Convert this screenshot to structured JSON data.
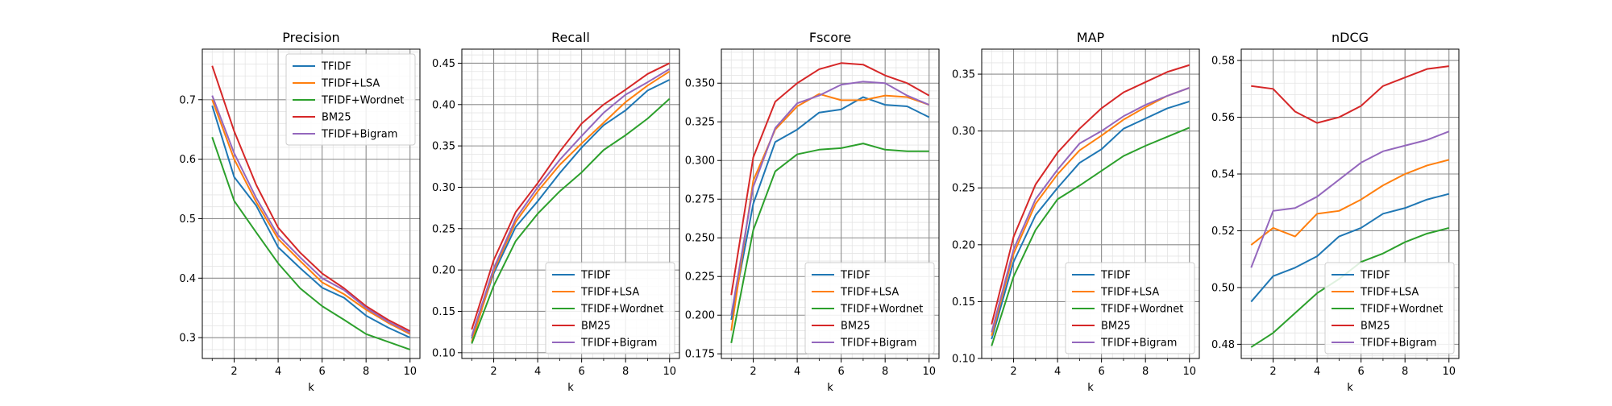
{
  "figure": {
    "colors": {
      "TFIDF": "#1f77b4",
      "TFIDF+LSA": "#ff7f0e",
      "TFIDF+Wordnet": "#2ca02c",
      "BM25": "#d62728",
      "TFIDF+Bigram": "#9467bd"
    },
    "grid": true,
    "minor_grid": true
  },
  "chart_data": [
    {
      "type": "line",
      "title": "Precision",
      "xlabel": "k",
      "ylabel": "",
      "xlim": [
        0.55,
        10.45
      ],
      "ylim": [
        0.265,
        0.785
      ],
      "xticks": [
        2,
        4,
        6,
        8,
        10
      ],
      "xtick_labels": [
        "2",
        "4",
        "6",
        "8",
        "10"
      ],
      "yticks": [
        0.3,
        0.4,
        0.5,
        0.6,
        0.7
      ],
      "ytick_labels": [
        "0.3",
        "0.4",
        "0.5",
        "0.6",
        "0.7"
      ],
      "legend_position": "upper right",
      "x": [
        1,
        2,
        3,
        4,
        5,
        6,
        7,
        8,
        9,
        10
      ],
      "series": [
        {
          "name": "TFIDF",
          "values": [
            0.69,
            0.57,
            0.522,
            0.452,
            0.417,
            0.384,
            0.367,
            0.337,
            0.317,
            0.3
          ]
        },
        {
          "name": "TFIDF+LSA",
          "values": [
            0.7,
            0.6,
            0.528,
            0.466,
            0.429,
            0.393,
            0.373,
            0.347,
            0.325,
            0.306
          ]
        },
        {
          "name": "TFIDF+Wordnet",
          "values": [
            0.637,
            0.53,
            0.477,
            0.425,
            0.383,
            0.353,
            0.33,
            0.306,
            0.293,
            0.28
          ]
        },
        {
          "name": "BM25",
          "values": [
            0.757,
            0.647,
            0.557,
            0.485,
            0.443,
            0.408,
            0.383,
            0.353,
            0.33,
            0.311
          ]
        },
        {
          "name": "TFIDF+Bigram",
          "values": [
            0.707,
            0.61,
            0.535,
            0.472,
            0.435,
            0.4,
            0.38,
            0.35,
            0.327,
            0.308
          ]
        }
      ]
    },
    {
      "type": "line",
      "title": "Recall",
      "xlabel": "k",
      "ylabel": "",
      "xlim": [
        0.55,
        10.45
      ],
      "ylim": [
        0.093,
        0.467
      ],
      "xticks": [
        2,
        4,
        6,
        8,
        10
      ],
      "xtick_labels": [
        "2",
        "4",
        "6",
        "8",
        "10"
      ],
      "yticks": [
        0.1,
        0.15,
        0.2,
        0.25,
        0.3,
        0.35,
        0.4,
        0.45
      ],
      "ytick_labels": [
        "0.10",
        "0.15",
        "0.20",
        "0.25",
        "0.30",
        "0.35",
        "0.40",
        "0.45"
      ],
      "legend_position": "lower right",
      "x": [
        1,
        2,
        3,
        4,
        5,
        6,
        7,
        8,
        9,
        10
      ],
      "series": [
        {
          "name": "TFIDF",
          "values": [
            0.117,
            0.196,
            0.252,
            0.283,
            0.317,
            0.348,
            0.375,
            0.393,
            0.417,
            0.43
          ]
        },
        {
          "name": "TFIDF+LSA",
          "values": [
            0.113,
            0.199,
            0.258,
            0.295,
            0.327,
            0.353,
            0.378,
            0.403,
            0.423,
            0.44
          ]
        },
        {
          "name": "TFIDF+Wordnet",
          "values": [
            0.111,
            0.181,
            0.235,
            0.268,
            0.295,
            0.318,
            0.345,
            0.363,
            0.383,
            0.407
          ]
        },
        {
          "name": "BM25",
          "values": [
            0.128,
            0.212,
            0.27,
            0.305,
            0.343,
            0.377,
            0.4,
            0.418,
            0.437,
            0.45
          ]
        },
        {
          "name": "TFIDF+Bigram",
          "values": [
            0.12,
            0.202,
            0.262,
            0.3,
            0.333,
            0.362,
            0.39,
            0.412,
            0.427,
            0.443
          ]
        }
      ]
    },
    {
      "type": "line",
      "title": "Fscore",
      "xlabel": "k",
      "ylabel": "",
      "xlim": [
        0.55,
        10.45
      ],
      "ylim": [
        0.172,
        0.372
      ],
      "xticks": [
        2,
        4,
        6,
        8,
        10
      ],
      "xtick_labels": [
        "2",
        "4",
        "6",
        "8",
        "10"
      ],
      "yticks": [
        0.175,
        0.2,
        0.225,
        0.25,
        0.275,
        0.3,
        0.325,
        0.35
      ],
      "ytick_labels": [
        "0.175",
        "0.200",
        "0.225",
        "0.250",
        "0.275",
        "0.300",
        "0.325",
        "0.350"
      ],
      "legend_position": "lower right",
      "x": [
        1,
        2,
        3,
        4,
        5,
        6,
        7,
        8,
        9,
        10
      ],
      "series": [
        {
          "name": "TFIDF",
          "values": [
            0.197,
            0.272,
            0.312,
            0.32,
            0.331,
            0.333,
            0.341,
            0.336,
            0.335,
            0.328
          ]
        },
        {
          "name": "TFIDF+LSA",
          "values": [
            0.19,
            0.287,
            0.32,
            0.335,
            0.343,
            0.339,
            0.339,
            0.342,
            0.341,
            0.336
          ]
        },
        {
          "name": "TFIDF+Wordnet",
          "values": [
            0.182,
            0.255,
            0.293,
            0.304,
            0.307,
            0.308,
            0.311,
            0.307,
            0.306,
            0.306
          ]
        },
        {
          "name": "BM25",
          "values": [
            0.213,
            0.302,
            0.338,
            0.35,
            0.359,
            0.363,
            0.362,
            0.355,
            0.35,
            0.342
          ]
        },
        {
          "name": "TFIDF+Bigram",
          "values": [
            0.2,
            0.283,
            0.321,
            0.337,
            0.342,
            0.349,
            0.351,
            0.35,
            0.342,
            0.336
          ]
        }
      ]
    },
    {
      "type": "line",
      "title": "MAP",
      "xlabel": "k",
      "ylabel": "",
      "xlim": [
        0.55,
        10.45
      ],
      "ylim": [
        0.1,
        0.372
      ],
      "xticks": [
        2,
        4,
        6,
        8,
        10
      ],
      "xtick_labels": [
        "2",
        "4",
        "6",
        "8",
        "10"
      ],
      "yticks": [
        0.1,
        0.15,
        0.2,
        0.25,
        0.3,
        0.35
      ],
      "ytick_labels": [
        "0.10",
        "0.15",
        "0.20",
        "0.25",
        "0.30",
        "0.35"
      ],
      "legend_position": "lower right",
      "x": [
        1,
        2,
        3,
        4,
        5,
        6,
        7,
        8,
        9,
        10
      ],
      "series": [
        {
          "name": "TFIDF",
          "values": [
            0.117,
            0.185,
            0.226,
            0.25,
            0.272,
            0.284,
            0.302,
            0.311,
            0.32,
            0.326
          ]
        },
        {
          "name": "TFIDF+LSA",
          "values": [
            0.12,
            0.192,
            0.236,
            0.262,
            0.283,
            0.296,
            0.31,
            0.321,
            0.331,
            0.338
          ]
        },
        {
          "name": "TFIDF+Wordnet",
          "values": [
            0.111,
            0.172,
            0.213,
            0.24,
            0.252,
            0.265,
            0.278,
            0.287,
            0.295,
            0.303
          ]
        },
        {
          "name": "BM25",
          "values": [
            0.13,
            0.207,
            0.253,
            0.281,
            0.302,
            0.32,
            0.334,
            0.343,
            0.352,
            0.358
          ]
        },
        {
          "name": "TFIDF+Bigram",
          "values": [
            0.123,
            0.196,
            0.24,
            0.266,
            0.289,
            0.3,
            0.313,
            0.323,
            0.331,
            0.338
          ]
        }
      ]
    },
    {
      "type": "line",
      "title": "nDCG",
      "xlabel": "k",
      "ylabel": "",
      "xlim": [
        0.55,
        10.45
      ],
      "ylim": [
        0.475,
        0.584
      ],
      "xticks": [
        2,
        4,
        6,
        8,
        10
      ],
      "xtick_labels": [
        "2",
        "4",
        "6",
        "8",
        "10"
      ],
      "yticks": [
        0.48,
        0.5,
        0.52,
        0.54,
        0.56,
        0.58
      ],
      "ytick_labels": [
        "0.48",
        "0.50",
        "0.52",
        "0.54",
        "0.56",
        "0.58"
      ],
      "legend_position": "lower right",
      "x": [
        1,
        2,
        3,
        4,
        5,
        6,
        7,
        8,
        9,
        10
      ],
      "series": [
        {
          "name": "TFIDF",
          "values": [
            0.495,
            0.504,
            0.507,
            0.511,
            0.518,
            0.521,
            0.526,
            0.528,
            0.531,
            0.533
          ]
        },
        {
          "name": "TFIDF+LSA",
          "values": [
            0.515,
            0.521,
            0.518,
            0.526,
            0.527,
            0.531,
            0.536,
            0.54,
            0.543,
            0.545
          ]
        },
        {
          "name": "TFIDF+Wordnet",
          "values": [
            0.479,
            0.484,
            0.491,
            0.498,
            0.503,
            0.509,
            0.512,
            0.516,
            0.519,
            0.521
          ]
        },
        {
          "name": "BM25",
          "values": [
            0.571,
            0.57,
            0.562,
            0.558,
            0.56,
            0.564,
            0.571,
            0.574,
            0.577,
            0.578
          ]
        },
        {
          "name": "TFIDF+Bigram",
          "values": [
            0.507,
            0.527,
            0.528,
            0.532,
            0.538,
            0.544,
            0.548,
            0.55,
            0.552,
            0.555
          ]
        }
      ]
    }
  ]
}
